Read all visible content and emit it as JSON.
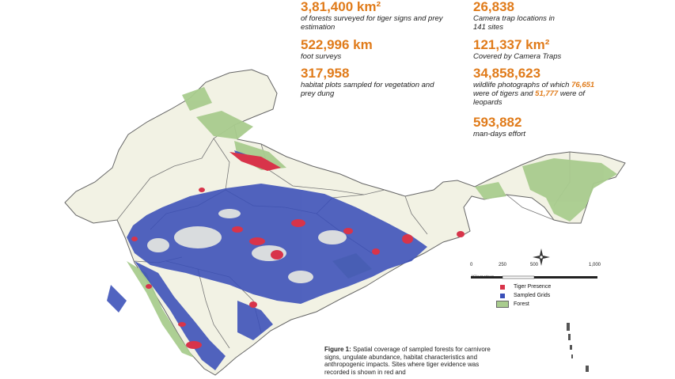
{
  "stats": {
    "forest_area": {
      "value": "3,81,400 km²",
      "desc": "of forests surveyed for tiger signs and prey estimation"
    },
    "foot_surveys": {
      "value": "522,996 km",
      "desc": "foot surveys"
    },
    "habitat_plots": {
      "value": "317,958",
      "desc": "habitat plots sampled for vegetation and prey dung"
    },
    "camera_traps": {
      "value": "26,838",
      "desc": "Camera trap locations in 141 sites"
    },
    "camera_area": {
      "value": "121,337 km²",
      "desc": "Covered by Camera Traps"
    },
    "photos": {
      "value": "34,858,623",
      "desc_a": "wildlife photographs of which ",
      "tigers": "76,651",
      "desc_b": " were of tigers and ",
      "leopards": "51,777",
      "desc_c": " were of leopards"
    },
    "effort": {
      "value": "593,882",
      "desc": "man-days effort"
    }
  },
  "legend": {
    "tiger": "Tiger Presence",
    "sampled": "Sampled Grids",
    "forest": "Forest"
  },
  "scale": {
    "ticks": [
      "0",
      "250",
      "500",
      "1,000"
    ],
    "unit": "Kilometers"
  },
  "caption": {
    "label": "Figure 1:",
    "text": "Spatial coverage of sampled forests for carnivore signs, ungulate abundance, habitat characteristics and anthropogenic impacts. Sites where tiger evidence was recorded is shown in red and"
  },
  "colors": {
    "tiger": "#d8344a",
    "sampled": "#3a4fb8",
    "forest": "#a9cc8e",
    "land": "#f2f2e4",
    "accent": "#e07b1a"
  },
  "icons": {
    "north_arrow": "compass-rose-icon"
  }
}
